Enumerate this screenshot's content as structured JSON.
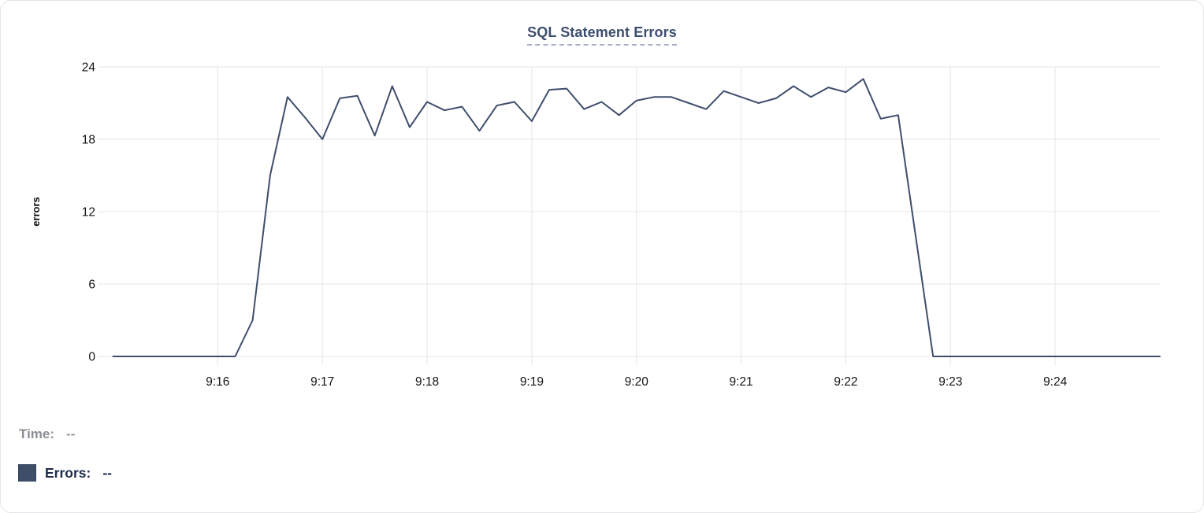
{
  "readout": {
    "time_label": "Time:",
    "time_value": "--",
    "errors_label": "Errors:",
    "errors_value": "--"
  },
  "chart_data": {
    "type": "line",
    "title": "SQL Statement Errors",
    "xlabel": "",
    "ylabel": "errors",
    "x_unit": "seconds after 9:15:00",
    "xlim_sec": [
      -7,
      600
    ],
    "ylim": [
      0,
      24
    ],
    "y_ticks": [
      0,
      6,
      12,
      18,
      24
    ],
    "x_ticks": [
      {
        "label": "9:16",
        "t": 60
      },
      {
        "label": "9:17",
        "t": 120
      },
      {
        "label": "9:18",
        "t": 180
      },
      {
        "label": "9:19",
        "t": 240
      },
      {
        "label": "9:20",
        "t": 300
      },
      {
        "label": "9:21",
        "t": 360
      },
      {
        "label": "9:22",
        "t": 420
      },
      {
        "label": "9:23",
        "t": 480
      },
      {
        "label": "9:24",
        "t": 540
      }
    ],
    "grid": true,
    "legend_position": "bottom-left",
    "series": [
      {
        "name": "Errors",
        "color": "#3f4e6c",
        "points": [
          [
            0,
            0
          ],
          [
            10,
            0
          ],
          [
            20,
            0
          ],
          [
            30,
            0
          ],
          [
            40,
            0
          ],
          [
            50,
            0
          ],
          [
            60,
            0
          ],
          [
            70,
            0
          ],
          [
            80,
            3
          ],
          [
            90,
            15
          ],
          [
            100,
            21.5
          ],
          [
            110,
            19.8
          ],
          [
            120,
            18
          ],
          [
            130,
            21.4
          ],
          [
            140,
            21.6
          ],
          [
            150,
            18.3
          ],
          [
            160,
            22.4
          ],
          [
            170,
            19
          ],
          [
            180,
            21.1
          ],
          [
            190,
            20.4
          ],
          [
            200,
            20.7
          ],
          [
            210,
            18.7
          ],
          [
            220,
            20.8
          ],
          [
            230,
            21.1
          ],
          [
            240,
            19.5
          ],
          [
            250,
            22.1
          ],
          [
            260,
            22.2
          ],
          [
            270,
            20.5
          ],
          [
            280,
            21.1
          ],
          [
            290,
            20
          ],
          [
            300,
            21.2
          ],
          [
            310,
            21.5
          ],
          [
            320,
            21.5
          ],
          [
            330,
            21
          ],
          [
            340,
            20.5
          ],
          [
            350,
            22
          ],
          [
            360,
            21.5
          ],
          [
            370,
            21
          ],
          [
            380,
            21.4
          ],
          [
            390,
            22.4
          ],
          [
            400,
            21.5
          ],
          [
            410,
            22.3
          ],
          [
            420,
            21.9
          ],
          [
            430,
            23
          ],
          [
            440,
            19.7
          ],
          [
            450,
            20
          ],
          [
            460,
            10
          ],
          [
            470,
            0
          ],
          [
            480,
            0
          ],
          [
            490,
            0
          ],
          [
            500,
            0
          ],
          [
            510,
            0
          ],
          [
            520,
            0
          ],
          [
            530,
            0
          ],
          [
            540,
            0
          ],
          [
            550,
            0
          ],
          [
            560,
            0
          ],
          [
            570,
            0
          ],
          [
            580,
            0
          ],
          [
            590,
            0
          ],
          [
            600,
            0
          ]
        ]
      }
    ]
  }
}
